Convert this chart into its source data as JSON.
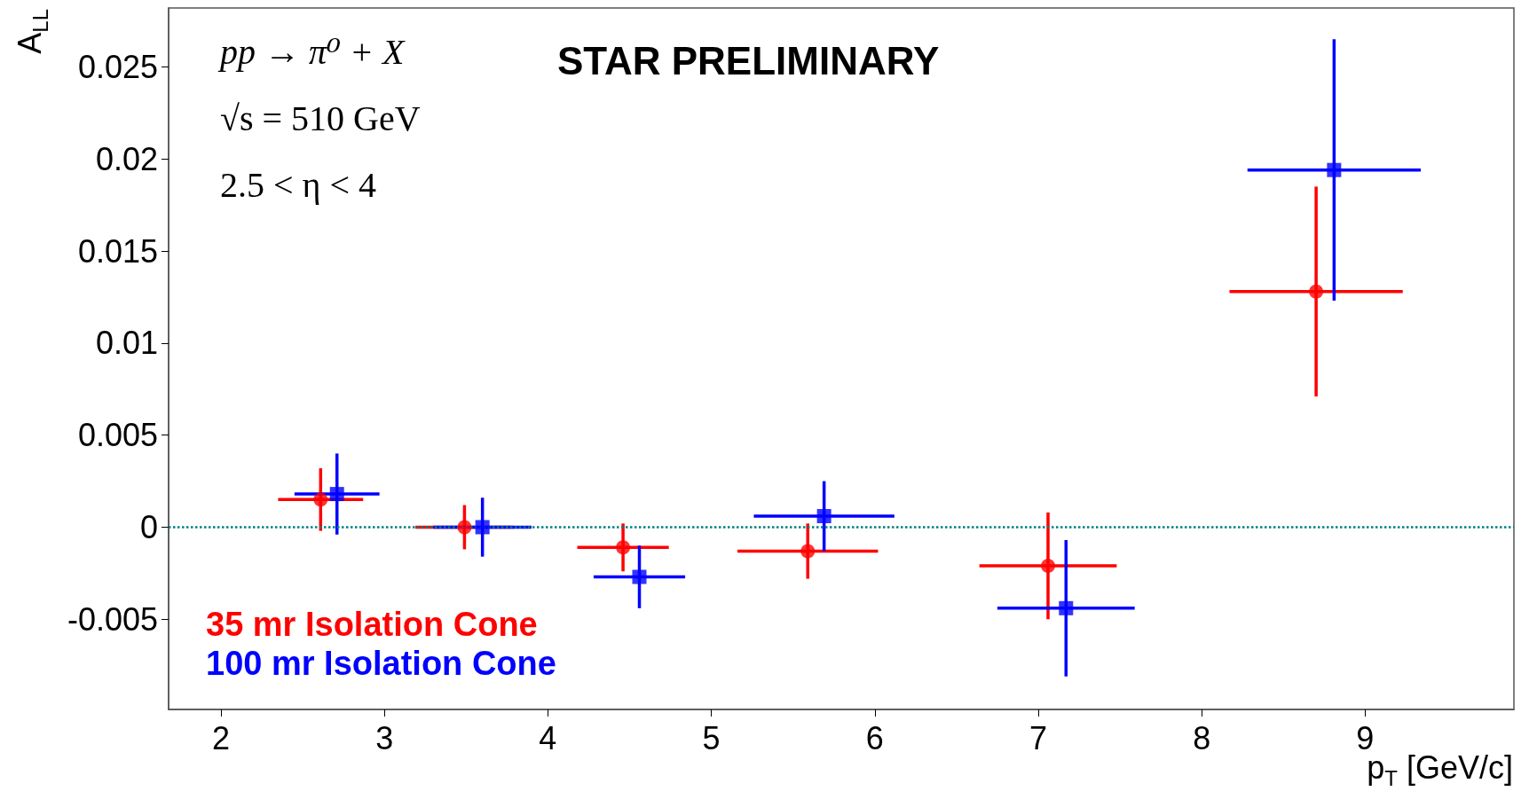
{
  "chart_data": {
    "type": "scatter",
    "xlabel": "p$_{T}$ [GeV/c]",
    "ylabel": "A$_{LL}$",
    "annotations": [
      "pp → π⁰ + X",
      "√s = 510 GeV",
      "2.5 < η < 4",
      "STAR PRELIMINARY"
    ],
    "xlim": [
      1.68,
      9.91
    ],
    "xticks": [
      2,
      3,
      4,
      5,
      6,
      7,
      8,
      9
    ],
    "ylim": [
      -0.0099,
      0.0282
    ],
    "yticks": [
      -0.005,
      0,
      0.005,
      0.01,
      0.015,
      0.02,
      0.025
    ],
    "legend": "bottom left",
    "ref_lines": [
      {
        "axis": "y",
        "value": 0,
        "label": null,
        "color": "#008080",
        "line_style": "dotted"
      }
    ],
    "series": [
      {
        "name": "35 mr Isolation Cone",
        "color": "#ff0000",
        "marker": "circle",
        "x": [
          2.61,
          3.49,
          4.46,
          5.59,
          7.06,
          8.7
        ],
        "values": [
          0.0015,
          0,
          -0.0011,
          -0.0013,
          -0.0021,
          0.0128
        ],
        "errors": [
          0.0017,
          0.0012,
          0.0013,
          0.0015,
          0.0029,
          0.0057
        ],
        "xerrors": [
          0.26,
          0.3,
          0.28,
          0.43,
          0.42,
          0.53
        ]
      },
      {
        "name": "100 mr Isolation Cone",
        "color": "#0000ff",
        "marker": "square",
        "x": [
          2.71,
          3.6,
          4.56,
          5.69,
          7.17,
          8.81
        ],
        "values": [
          0.0018,
          0,
          -0.0027,
          0.0006,
          -0.0044,
          0.0194
        ],
        "errors": [
          0.0022,
          0.0016,
          0.0017,
          0.0019,
          0.0037,
          0.0071
        ],
        "xerrors": [
          0.26,
          0.3,
          0.28,
          0.43,
          0.42,
          0.53
        ]
      }
    ]
  }
}
